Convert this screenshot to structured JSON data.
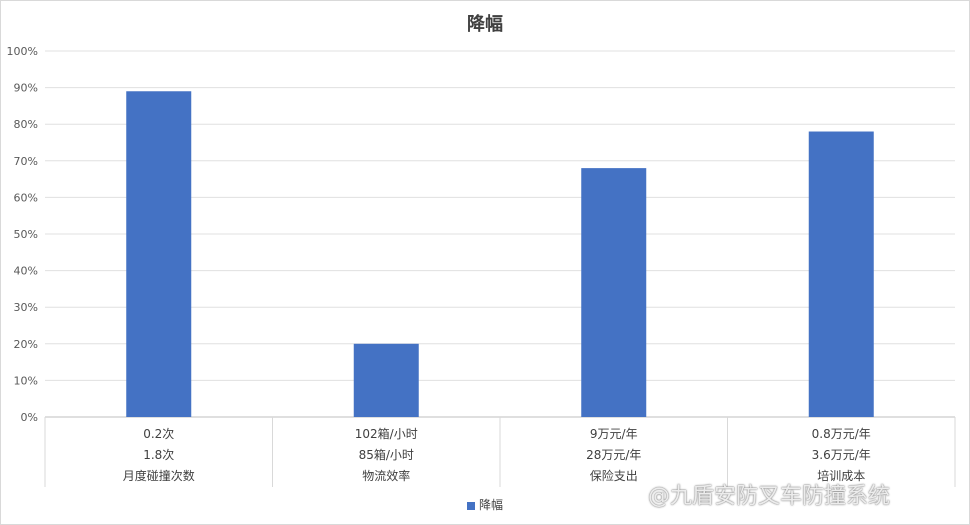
{
  "chart_data": {
    "type": "bar",
    "title": "降幅",
    "categories": [
      [
        "0.2次",
        "1.8次",
        "月度碰撞次数"
      ],
      [
        "102箱/小时",
        "85箱/小时",
        "物流效率"
      ],
      [
        "9万元/年",
        "28万元/年",
        "保险支出"
      ],
      [
        "0.8万元/年",
        "3.6万元/年",
        "培训成本"
      ]
    ],
    "series": [
      {
        "name": "降幅",
        "values": [
          89,
          20,
          68,
          78
        ],
        "color": "#4472c4"
      }
    ],
    "ylim": [
      0,
      100
    ],
    "yticks": [
      "0%",
      "10%",
      "20%",
      "30%",
      "40%",
      "50%",
      "60%",
      "70%",
      "80%",
      "90%",
      "100%"
    ],
    "grid": true,
    "legend_placement": "bottom"
  },
  "watermark": "@九盾安防叉车防撞系统"
}
